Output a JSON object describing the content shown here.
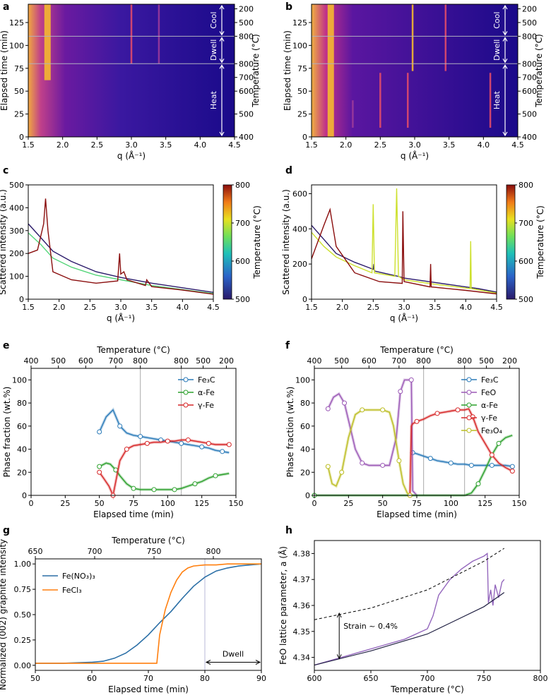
{
  "colors": {
    "Fe3C": "#2b7bb9",
    "FeO": "#9b59b6",
    "a_Fe": "#2ca02c",
    "g_Fe": "#d62728",
    "Fe3O4": "#bcbd22",
    "Fe(NO3)3": "#2b6fa6",
    "FeCl3": "#ff7f0e",
    "lattice": "#9467bd",
    "divider": "#b0b0c0",
    "heatmap_bg": "#2f1f8f"
  },
  "panels": {
    "a": {
      "label": "a",
      "xlabel": "q (Å⁻¹)",
      "ylabel": "Elapsed time (min)",
      "ylabel_right": "Temperature (°C)",
      "xticks": [
        "1.5",
        "2.0",
        "2.5",
        "3.0",
        "3.5",
        "4.0",
        "4.5"
      ],
      "yticks": [
        "0",
        "25",
        "50",
        "75",
        "100",
        "125"
      ],
      "temp_ticks": [
        "200",
        "500",
        "800",
        "800",
        "700",
        "600",
        "500",
        "400"
      ],
      "bands": [
        "Cool",
        "Dwell",
        "Heat"
      ]
    },
    "b": {
      "label": "b",
      "xlabel": "q (Å⁻¹)",
      "ylabel": "Elapsed time (min)",
      "ylabel_right": "Temperature (°C)",
      "xticks": [
        "1.5",
        "2.0",
        "2.5",
        "3.0",
        "3.5",
        "4.0",
        "4.5"
      ],
      "yticks": [
        "0",
        "25",
        "50",
        "75",
        "100",
        "125"
      ],
      "temp_ticks": [
        "200",
        "500",
        "800",
        "800",
        "700",
        "600",
        "500",
        "400"
      ],
      "bands": [
        "Cool",
        "Dwell",
        "Heat"
      ]
    },
    "c": {
      "label": "c",
      "xlabel": "q (Å⁻¹)",
      "ylabel": "Scattered intensity (a.u.)",
      "cbar_label": "Temperature (°C)",
      "xticks": [
        "1.5",
        "2.0",
        "2.5",
        "3.0",
        "3.5",
        "4.0",
        "4.5"
      ],
      "yticks": [
        "0",
        "100",
        "200",
        "300",
        "400",
        "500"
      ],
      "cbar_ticks": [
        "500",
        "600",
        "700",
        "800"
      ]
    },
    "d": {
      "label": "d",
      "xlabel": "q (Å⁻¹)",
      "ylabel": "Scattered intensity (a.u.)",
      "cbar_label": "Temperature (°C)",
      "xticks": [
        "1.5",
        "2.0",
        "2.5",
        "3.0",
        "3.5",
        "4.0",
        "4.5"
      ],
      "yticks": [
        "0",
        "200",
        "400",
        "600"
      ],
      "cbar_ticks": [
        "500",
        "600",
        "700",
        "800"
      ]
    },
    "e": {
      "label": "e",
      "xlabel": "Elapsed time (min)",
      "ylabel": "Phase fraction (wt.%)",
      "top_label": "Temperature (°C)",
      "xticks": [
        "0",
        "25",
        "50",
        "75",
        "100",
        "125",
        "150"
      ],
      "yticks": [
        "0",
        "20",
        "40",
        "60",
        "80",
        "100"
      ],
      "top_ticks": [
        "400",
        "500",
        "600",
        "700",
        "800",
        "800",
        "500",
        "200"
      ],
      "legend": [
        "Fe₃C",
        "α-Fe",
        "γ-Fe"
      ]
    },
    "f": {
      "label": "f",
      "xlabel": "Elapsed time (min)",
      "ylabel": "Phase fraction (wt.%)",
      "top_label": "Temperature (°C)",
      "xticks": [
        "0",
        "25",
        "50",
        "75",
        "100",
        "125",
        "150"
      ],
      "yticks": [
        "0",
        "20",
        "40",
        "60",
        "80",
        "100"
      ],
      "top_ticks": [
        "400",
        "500",
        "600",
        "700",
        "800",
        "800",
        "500",
        "200"
      ],
      "legend": [
        "Fe₃C",
        "FeO",
        "α-Fe",
        "γ-Fe",
        "Fe₃O₄"
      ]
    },
    "g": {
      "label": "g",
      "xlabel": "Elapsed time (min)",
      "ylabel": "Normalized (002) graphite intensity",
      "top_label": "Temperature (°C)",
      "xticks": [
        "50",
        "60",
        "70",
        "80",
        "90"
      ],
      "yticks": [
        "0.00",
        "0.25",
        "0.50",
        "0.75",
        "1.00"
      ],
      "top_ticks": [
        "650",
        "700",
        "750",
        "800"
      ],
      "legend": [
        "Fe(NO₃)₃",
        "FeCl₃"
      ],
      "annotation": "Dwell"
    },
    "h": {
      "label": "h",
      "xlabel": "Temperature (°C)",
      "ylabel": "FeO lattice parameter, a (Å)",
      "xticks": [
        "600",
        "650",
        "700",
        "750",
        "800"
      ],
      "yticks": [
        "4.34",
        "4.35",
        "4.36",
        "4.37",
        "4.38"
      ],
      "annotation": "Strain ~ 0.4%"
    }
  },
  "chart_data": [
    {
      "panel": "a",
      "type": "heatmap",
      "xlim": [
        1.5,
        4.5
      ],
      "ylim": [
        0,
        145
      ],
      "stages": [
        {
          "name": "Heat",
          "t": [
            0,
            80
          ]
        },
        {
          "name": "Dwell",
          "t": [
            80,
            110
          ]
        },
        {
          "name": "Cool",
          "t": [
            110,
            145
          ]
        }
      ],
      "features": [
        {
          "q": 1.78,
          "t": [
            62,
            145
          ],
          "intensity": "high"
        },
        {
          "q": 3.0,
          "t": [
            80,
            145
          ],
          "intensity": "medium"
        },
        {
          "q": 3.4,
          "t": [
            80,
            145
          ],
          "intensity": "low"
        }
      ]
    },
    {
      "panel": "b",
      "type": "heatmap",
      "xlim": [
        1.5,
        4.5
      ],
      "ylim": [
        0,
        145
      ],
      "stages": [
        {
          "name": "Heat",
          "t": [
            0,
            80
          ]
        },
        {
          "name": "Dwell",
          "t": [
            80,
            110
          ]
        },
        {
          "name": "Cool",
          "t": [
            110,
            145
          ]
        }
      ],
      "features": [
        {
          "q": 1.78,
          "t": [
            0,
            145
          ],
          "intensity": "high"
        },
        {
          "q": 2.97,
          "t": [
            72,
            145
          ],
          "intensity": "high"
        },
        {
          "q": 3.45,
          "t": [
            72,
            145
          ],
          "intensity": "medium"
        },
        {
          "q": 2.5,
          "t": [
            10,
            70
          ],
          "intensity": "medium"
        },
        {
          "q": 2.9,
          "t": [
            10,
            70
          ],
          "intensity": "medium"
        },
        {
          "q": 4.1,
          "t": [
            10,
            70
          ],
          "intensity": "medium"
        },
        {
          "q": 2.1,
          "t": [
            10,
            40
          ],
          "intensity": "low"
        }
      ]
    },
    {
      "panel": "c",
      "type": "line",
      "xlim": [
        1.5,
        4.5
      ],
      "ylim": [
        0,
        500
      ],
      "series": [
        {
          "temp": 500,
          "x": [
            1.5,
            1.7,
            1.9,
            2.2,
            2.6,
            3.0,
            3.5,
            4.0,
            4.5
          ],
          "y": [
            330,
            270,
            210,
            165,
            120,
            95,
            70,
            50,
            30
          ]
        },
        {
          "temp": 650,
          "x": [
            1.5,
            1.7,
            1.9,
            2.2,
            2.6,
            3.0,
            3.5,
            4.0,
            4.5
          ],
          "y": [
            290,
            240,
            180,
            140,
            105,
            85,
            60,
            42,
            25
          ]
        },
        {
          "temp": 800,
          "x": [
            1.5,
            1.65,
            1.75,
            1.78,
            1.82,
            1.9,
            2.2,
            2.6,
            2.95,
            2.98,
            3.0,
            3.05,
            3.1,
            3.4,
            3.42,
            3.5,
            4.0,
            4.5
          ],
          "y": [
            200,
            215,
            330,
            440,
            300,
            120,
            85,
            70,
            80,
            200,
            110,
            120,
            85,
            60,
            85,
            55,
            40,
            22
          ]
        }
      ]
    },
    {
      "panel": "d",
      "type": "line",
      "xlim": [
        1.5,
        4.5
      ],
      "ylim": [
        0,
        650
      ],
      "series": [
        {
          "temp": 500,
          "x": [
            1.5,
            1.7,
            1.9,
            2.2,
            2.5,
            2.51,
            2.52,
            2.9,
            3.0,
            3.5,
            4.0,
            4.2,
            4.5
          ],
          "y": [
            420,
            340,
            260,
            210,
            170,
            200,
            160,
            130,
            120,
            95,
            70,
            60,
            40
          ]
        },
        {
          "temp": 700,
          "x": [
            1.5,
            1.7,
            1.9,
            2.2,
            2.48,
            2.5,
            2.52,
            2.85,
            2.88,
            2.91,
            3.0,
            3.5,
            4.07,
            4.08,
            4.09,
            4.5
          ],
          "y": [
            380,
            300,
            240,
            190,
            150,
            540,
            150,
            130,
            630,
            130,
            110,
            85,
            60,
            330,
            60,
            35
          ]
        },
        {
          "temp": 800,
          "x": [
            1.5,
            1.7,
            1.8,
            1.9,
            2.2,
            2.6,
            2.97,
            2.98,
            3.0,
            3.42,
            3.43,
            3.44,
            4.0,
            4.5
          ],
          "y": [
            230,
            420,
            510,
            300,
            150,
            100,
            90,
            500,
            100,
            70,
            200,
            70,
            50,
            30
          ]
        }
      ]
    },
    {
      "panel": "e",
      "type": "line",
      "xlim": [
        0,
        150
      ],
      "ylim": [
        0,
        110
      ],
      "series": [
        {
          "name": "Fe₃C",
          "x": [
            50,
            55,
            60,
            65,
            70,
            75,
            80,
            85,
            90,
            95,
            100,
            105,
            110,
            115,
            120,
            125,
            130,
            135,
            140,
            145
          ],
          "y": [
            55,
            68,
            74,
            60,
            54,
            52,
            51,
            50,
            49,
            48,
            47,
            46,
            45,
            44,
            43,
            42,
            41,
            39,
            38,
            37
          ]
        },
        {
          "name": "α-Fe",
          "x": [
            50,
            55,
            58,
            62,
            65,
            70,
            75,
            80,
            85,
            90,
            95,
            100,
            105,
            110,
            115,
            120,
            125,
            130,
            135,
            140,
            145
          ],
          "y": [
            25,
            28,
            27,
            22,
            17,
            10,
            6,
            5,
            5,
            5,
            5,
            5,
            5,
            6,
            8,
            10,
            12,
            15,
            17,
            18,
            19
          ]
        },
        {
          "name": "γ-Fe",
          "x": [
            50,
            53,
            57,
            60,
            62,
            65,
            70,
            75,
            80,
            85,
            90,
            95,
            100,
            105,
            110,
            115,
            120,
            125,
            130,
            135,
            140,
            145
          ],
          "y": [
            20,
            15,
            8,
            0,
            12,
            30,
            40,
            43,
            44,
            45,
            46,
            46,
            47,
            47,
            48,
            48,
            47,
            46,
            45,
            44,
            44,
            44
          ]
        }
      ]
    },
    {
      "panel": "f",
      "type": "line",
      "xlim": [
        0,
        150
      ],
      "ylim": [
        0,
        110
      ],
      "series": [
        {
          "name": "Fe₃C",
          "x": [
            72,
            75,
            80,
            85,
            90,
            95,
            100,
            105,
            110,
            115,
            120,
            125,
            130,
            135,
            140,
            145
          ],
          "y": [
            37,
            36,
            34,
            32,
            30,
            29,
            28,
            27,
            27,
            26,
            26,
            26,
            26,
            26,
            26,
            25
          ]
        },
        {
          "name": "FeO",
          "x": [
            10,
            14,
            18,
            22,
            26,
            30,
            35,
            40,
            45,
            50,
            55,
            60,
            63,
            66,
            70,
            71,
            72,
            75
          ],
          "y": [
            75,
            85,
            88,
            80,
            60,
            40,
            28,
            26,
            26,
            26,
            26,
            50,
            90,
            100,
            100,
            100,
            4,
            0
          ]
        },
        {
          "name": "α-Fe",
          "x": [
            0,
            110,
            115,
            120,
            125,
            130,
            135,
            140,
            145
          ],
          "y": [
            0,
            0,
            2,
            10,
            22,
            35,
            45,
            50,
            52
          ]
        },
        {
          "name": "γ-Fe",
          "x": [
            70,
            71,
            72,
            75,
            80,
            85,
            90,
            95,
            100,
            105,
            110,
            113,
            116,
            120,
            125,
            130,
            135,
            140,
            145
          ],
          "y": [
            0,
            60,
            62,
            64,
            66,
            69,
            71,
            72,
            73,
            74,
            74,
            75,
            68,
            55,
            45,
            35,
            28,
            24,
            21
          ]
        },
        {
          "name": "Fe₃O₄",
          "x": [
            10,
            13,
            16,
            20,
            25,
            30,
            35,
            40,
            45,
            50,
            55,
            58,
            62,
            65,
            68,
            70,
            72
          ],
          "y": [
            25,
            10,
            8,
            20,
            50,
            70,
            74,
            74,
            74,
            74,
            72,
            60,
            30,
            10,
            2,
            0,
            0
          ]
        }
      ]
    },
    {
      "panel": "g",
      "type": "line",
      "xlim": [
        50,
        90
      ],
      "ylim": [
        -0.05,
        1.05
      ],
      "series": [
        {
          "name": "Fe(NO₃)₃",
          "x": [
            50,
            55,
            60,
            62,
            64,
            66,
            68,
            70,
            71,
            72,
            74,
            76,
            78,
            80,
            82,
            84,
            86,
            88,
            90
          ],
          "y": [
            0.02,
            0.02,
            0.03,
            0.04,
            0.07,
            0.12,
            0.2,
            0.3,
            0.36,
            0.42,
            0.53,
            0.66,
            0.78,
            0.87,
            0.93,
            0.96,
            0.98,
            0.99,
            1.0
          ]
        },
        {
          "name": "FeCl₃",
          "x": [
            50,
            60,
            70,
            71.5,
            72,
            73,
            74,
            75,
            76,
            77,
            78,
            80,
            82,
            84,
            86,
            88,
            90
          ],
          "y": [
            0.02,
            0.02,
            0.02,
            0.02,
            0.3,
            0.55,
            0.72,
            0.84,
            0.92,
            0.96,
            0.98,
            0.99,
            0.99,
            1.0,
            1.0,
            1.0,
            1.0
          ]
        }
      ],
      "dwell_start": 80
    },
    {
      "panel": "h",
      "type": "line",
      "xlim": [
        600,
        800
      ],
      "ylim": [
        4.335,
        4.385
      ],
      "series": [
        {
          "style": "measured",
          "x": [
            600,
            620,
            640,
            660,
            680,
            700,
            705,
            710,
            720,
            730,
            740,
            750,
            753,
            754,
            756,
            758,
            760,
            763,
            766,
            768
          ],
          "y": [
            4.337,
            4.3395,
            4.342,
            4.3445,
            4.347,
            4.351,
            4.356,
            4.364,
            4.37,
            4.374,
            4.377,
            4.379,
            4.38,
            4.361,
            4.366,
            4.36,
            4.368,
            4.363,
            4.369,
            4.37
          ]
        },
        {
          "style": "fit",
          "x": [
            600,
            650,
            700,
            750,
            768
          ],
          "y": [
            4.337,
            4.3425,
            4.349,
            4.3595,
            4.365
          ]
        },
        {
          "style": "dashed",
          "x": [
            600,
            650,
            700,
            750,
            768
          ],
          "y": [
            4.3545,
            4.359,
            4.366,
            4.377,
            4.382
          ]
        }
      ]
    }
  ]
}
